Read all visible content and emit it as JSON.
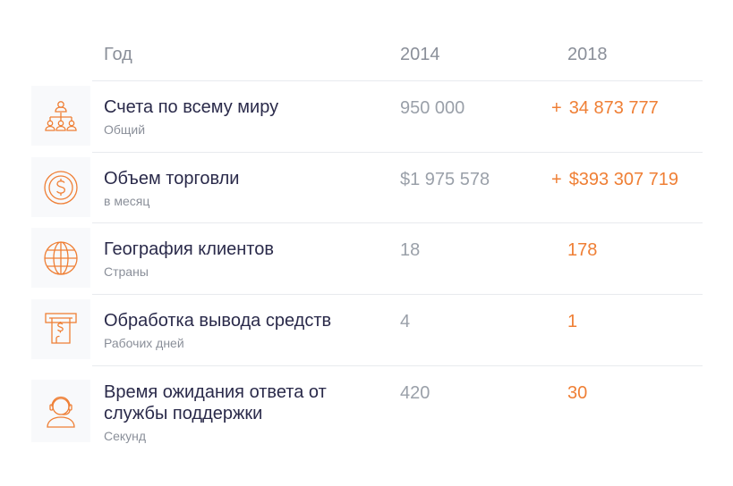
{
  "header": {
    "year_label": "Год",
    "col1": "2014",
    "col2": "2018"
  },
  "colors": {
    "accent": "#ef7f35",
    "title": "#2a2a4a",
    "muted": "#8a8f99"
  },
  "rows": [
    {
      "icon": "people-network-icon",
      "title": "Счета по всему миру",
      "subtitle": "Общий",
      "v2014": "950 000",
      "plus": "+",
      "v2018": "34 873 777"
    },
    {
      "icon": "dollar-coin-icon",
      "title": "Объем торговли",
      "subtitle": "в месяц",
      "v2014": "$1 975 578",
      "plus": "+",
      "v2018": "$393 307 719"
    },
    {
      "icon": "globe-icon",
      "title": "География клиентов",
      "subtitle": "Страны",
      "v2014": "18",
      "plus": "",
      "v2018": "178"
    },
    {
      "icon": "atm-withdrawal-icon",
      "title": "Обработка вывода средств",
      "subtitle": "Рабочих дней",
      "v2014": "4",
      "plus": "",
      "v2018": "1"
    },
    {
      "icon": "support-agent-icon",
      "title": "Время ожидания ответа от службы поддержки",
      "subtitle": "Секунд",
      "v2014": "420",
      "plus": "",
      "v2018": "30"
    }
  ]
}
